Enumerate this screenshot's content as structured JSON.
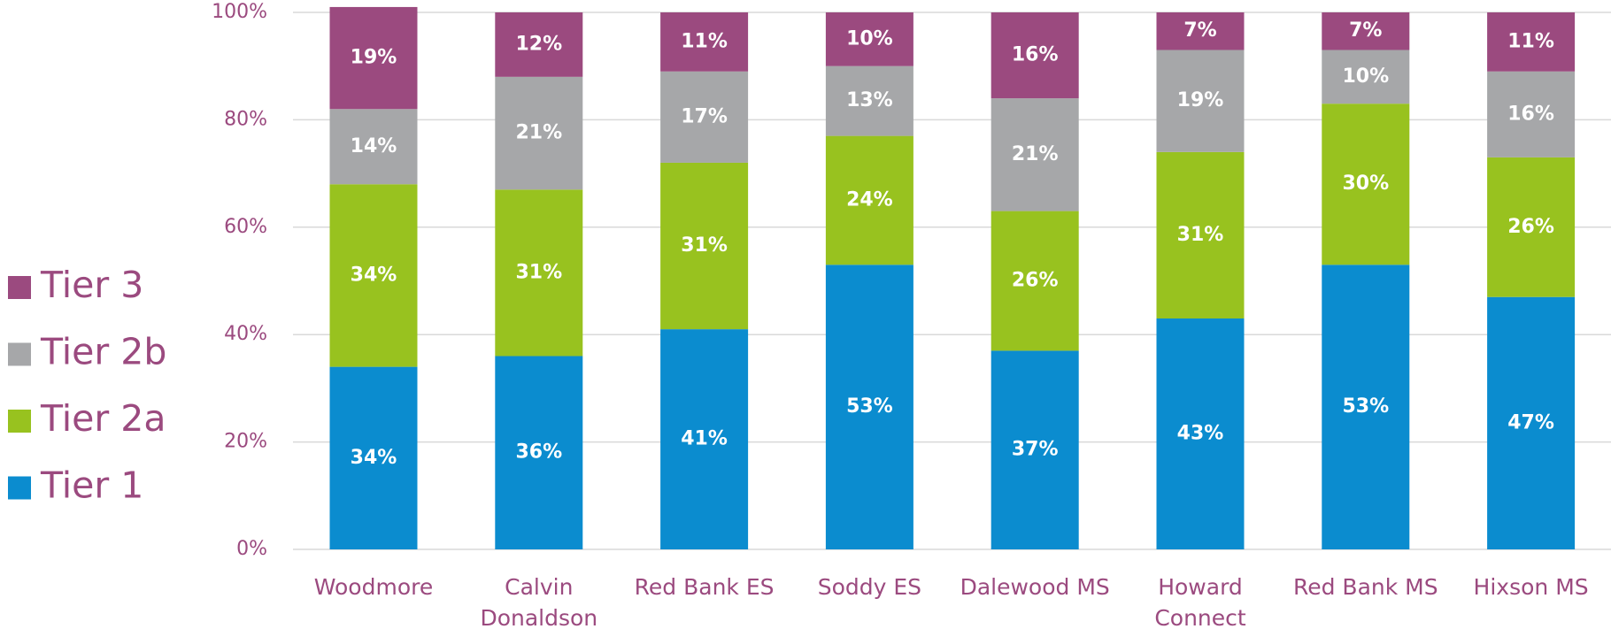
{
  "chart_data": {
    "type": "stacked_bar",
    "categories": [
      "Woodmore",
      "Calvin Donaldson",
      "Red Bank ES",
      "Soddy ES",
      "Dalewood MS",
      "Howard Connect",
      "Red Bank MS",
      "Hixson MS"
    ],
    "series": [
      {
        "name": "Tier 1",
        "color": "#0b8ccf",
        "values": [
          34,
          36,
          41,
          53,
          37,
          43,
          53,
          47
        ],
        "value_labels": [
          "34%",
          "36%",
          "41%",
          "53%",
          "37%",
          "43%",
          "53%",
          "47%"
        ]
      },
      {
        "name": "Tier 2a",
        "color": "#98c21f",
        "values": [
          34,
          31,
          31,
          24,
          26,
          31,
          30,
          26
        ],
        "value_labels": [
          "34%",
          "31%",
          "31%",
          "24%",
          "26%",
          "31%",
          "30%",
          "26%"
        ]
      },
      {
        "name": "Tier 2b",
        "color": "#a6a7a9",
        "values": [
          14,
          21,
          17,
          13,
          21,
          19,
          10,
          16
        ],
        "value_labels": [
          "14%",
          "21%",
          "17%",
          "13%",
          "21%",
          "19%",
          "10%",
          "16%"
        ]
      },
      {
        "name": "Tier 3",
        "color": "#9b4a7f",
        "values": [
          19,
          12,
          11,
          10,
          16,
          7,
          7,
          11
        ],
        "value_labels": [
          "19%",
          "12%",
          "11%",
          "10%",
          "16%",
          "7%",
          "7%",
          "11%"
        ]
      }
    ],
    "ylim": [
      0,
      100
    ],
    "yticks": [
      {
        "value": 0,
        "label": "0%"
      },
      {
        "value": 20,
        "label": "20%"
      },
      {
        "value": 40,
        "label": "40%"
      },
      {
        "value": 60,
        "label": "60%"
      },
      {
        "value": 80,
        "label": "80%"
      },
      {
        "value": 100,
        "label": "100%"
      }
    ],
    "grid": true,
    "legend": "left"
  }
}
